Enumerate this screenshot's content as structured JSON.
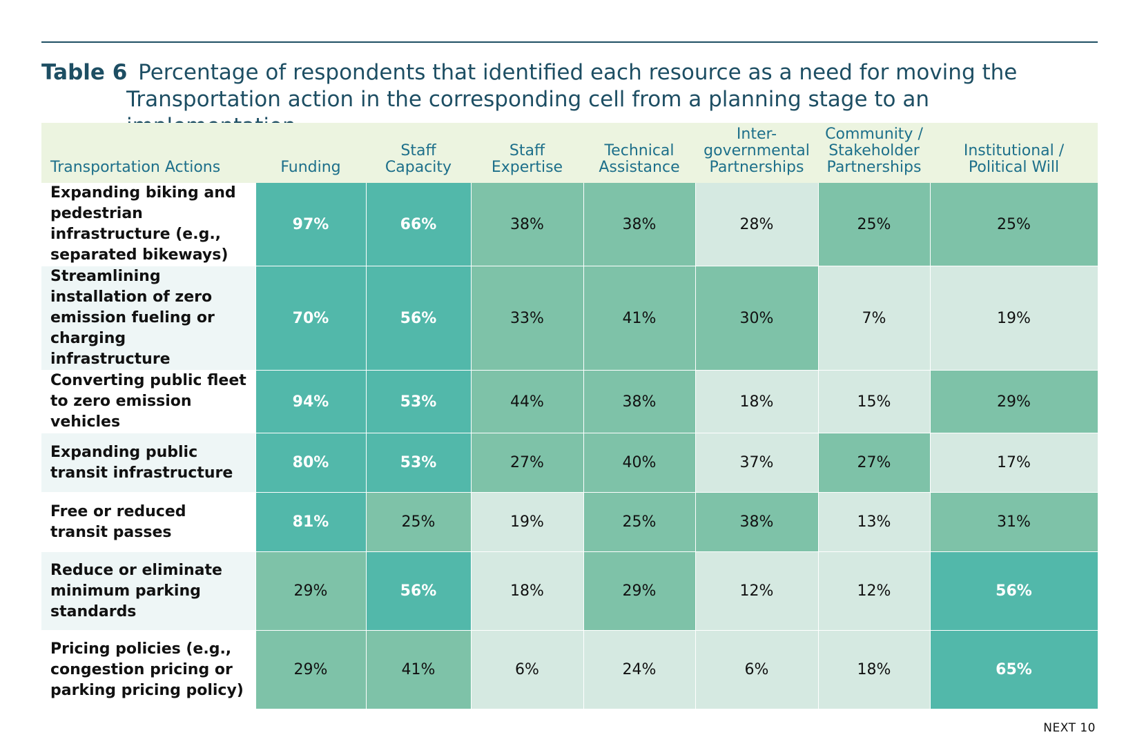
{
  "title": {
    "label": "Table 6",
    "line1": "Percentage of respondents that identified each resource as a need for moving the",
    "line2": "Transportation action in the corresponding cell from a planning stage to an implementation"
  },
  "table": {
    "headers": [
      "Transportation Actions",
      "Funding",
      "Staff Capacity",
      "Staff Expertise",
      "Technical Assistance",
      "Inter-governmental Partnerships",
      "Community / Stakeholder Partnerships",
      "Institutional / Political Will"
    ],
    "rows": [
      {
        "action": "Expanding biking and pedestrian infrastructure (e.g., separated bikeways)",
        "values": [
          "97%",
          "66%",
          "38%",
          "38%",
          "28%",
          "25%",
          "25%"
        ],
        "shades": [
          1,
          1,
          2,
          2,
          3,
          2,
          2
        ]
      },
      {
        "action": "Streamlining installation of zero emission fueling or charging infrastructure",
        "values": [
          "70%",
          "56%",
          "33%",
          "41%",
          "30%",
          "7%",
          "19%"
        ],
        "shades": [
          1,
          1,
          2,
          2,
          2,
          3,
          3
        ]
      },
      {
        "action": "Converting public fleet to zero emission vehicles",
        "values": [
          "94%",
          "53%",
          "44%",
          "38%",
          "18%",
          "15%",
          "29%"
        ],
        "shades": [
          1,
          1,
          2,
          2,
          3,
          3,
          2
        ]
      },
      {
        "action": "Expanding public transit infrastructure",
        "values": [
          "80%",
          "53%",
          "27%",
          "40%",
          "37%",
          "27%",
          "17%"
        ],
        "shades": [
          1,
          1,
          2,
          2,
          3,
          2,
          3
        ]
      },
      {
        "action": "Free or reduced transit passes",
        "values": [
          "81%",
          "25%",
          "19%",
          "25%",
          "38%",
          "13%",
          "31%"
        ],
        "shades": [
          1,
          2,
          3,
          2,
          2,
          3,
          2
        ]
      },
      {
        "action": "Reduce or eliminate minimum parking standards",
        "values": [
          "29%",
          "56%",
          "18%",
          "29%",
          "12%",
          "12%",
          "56%"
        ],
        "shades": [
          2,
          1,
          3,
          2,
          3,
          3,
          1
        ]
      },
      {
        "action": "Pricing policies (e.g., congestion pricing or parking pricing policy)",
        "values": [
          "29%",
          "41%",
          "6%",
          "24%",
          "6%",
          "18%",
          "65%"
        ],
        "shades": [
          2,
          2,
          3,
          3,
          3,
          3,
          1
        ]
      }
    ]
  },
  "footer": "NEXT 10"
}
